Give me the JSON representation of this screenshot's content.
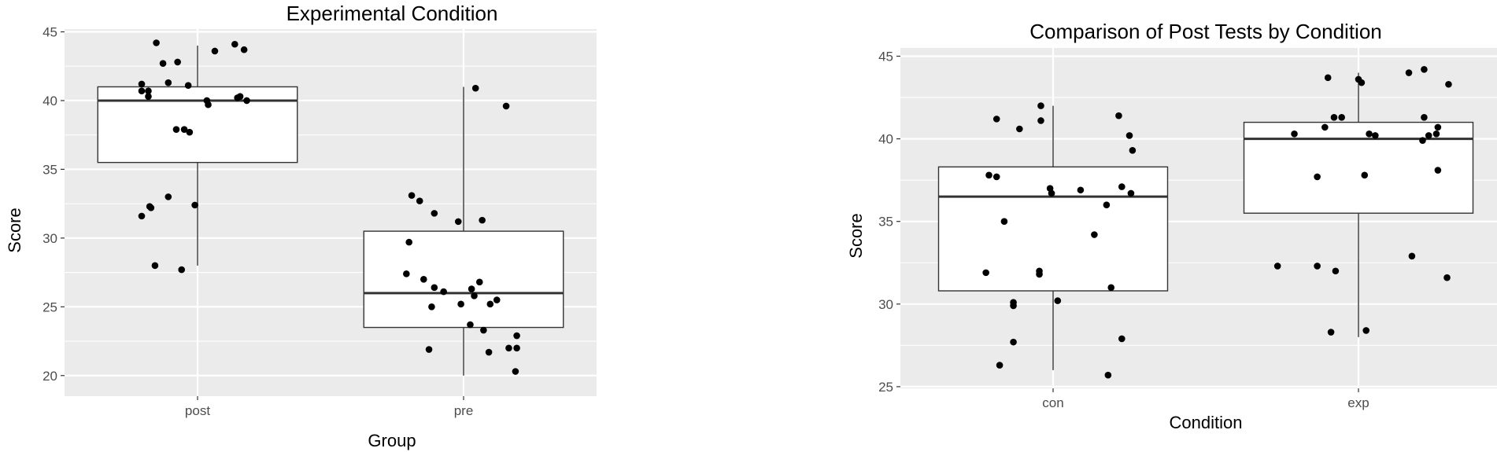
{
  "chart_data": [
    {
      "type": "box",
      "title": "Experimental Condition",
      "xlabel": "Group",
      "ylabel": "Score",
      "categories": [
        "post",
        "pre"
      ],
      "ylim": [
        18.5,
        45.2
      ],
      "yticks": [
        20,
        25,
        30,
        35,
        40,
        45
      ],
      "grid": true,
      "boxes": [
        {
          "category": "post",
          "q1": 35.5,
          "median": 40.0,
          "q3": 41.0,
          "whisker_low": 28.0,
          "whisker_high": 44.0
        },
        {
          "category": "pre",
          "q1": 23.5,
          "median": 26.0,
          "q3": 30.5,
          "whisker_low": 20.0,
          "whisker_high": 41.0
        }
      ],
      "points": [
        {
          "group": "post",
          "offset": -0.42,
          "value": 41.2
        },
        {
          "group": "post",
          "offset": -0.42,
          "value": 40.7
        },
        {
          "group": "post",
          "offset": -0.37,
          "value": 40.7
        },
        {
          "group": "post",
          "offset": -0.37,
          "value": 40.3
        },
        {
          "group": "post",
          "offset": -0.36,
          "value": 32.3
        },
        {
          "group": "post",
          "offset": -0.35,
          "value": 32.2
        },
        {
          "group": "post",
          "offset": -0.42,
          "value": 31.6
        },
        {
          "group": "post",
          "offset": -0.31,
          "value": 44.2
        },
        {
          "group": "post",
          "offset": -0.32,
          "value": 28.0
        },
        {
          "group": "post",
          "offset": -0.26,
          "value": 42.7
        },
        {
          "group": "post",
          "offset": -0.22,
          "value": 41.3
        },
        {
          "group": "post",
          "offset": -0.22,
          "value": 33.0
        },
        {
          "group": "post",
          "offset": -0.15,
          "value": 42.8
        },
        {
          "group": "post",
          "offset": -0.16,
          "value": 37.9
        },
        {
          "group": "post",
          "offset": -0.1,
          "value": 37.9
        },
        {
          "group": "post",
          "offset": -0.07,
          "value": 41.1
        },
        {
          "group": "post",
          "offset": -0.06,
          "value": 37.7
        },
        {
          "group": "post",
          "offset": -0.12,
          "value": 27.7
        },
        {
          "group": "post",
          "offset": -0.02,
          "value": 32.4
        },
        {
          "group": "post",
          "offset": 0.07,
          "value": 40.0
        },
        {
          "group": "post",
          "offset": 0.08,
          "value": 39.7
        },
        {
          "group": "post",
          "offset": 0.13,
          "value": 43.6
        },
        {
          "group": "post",
          "offset": 0.28,
          "value": 44.1
        },
        {
          "group": "post",
          "offset": 0.3,
          "value": 40.2
        },
        {
          "group": "post",
          "offset": 0.32,
          "value": 40.3
        },
        {
          "group": "post",
          "offset": 0.35,
          "value": 43.7
        },
        {
          "group": "post",
          "offset": 0.37,
          "value": 40.0
        },
        {
          "group": "pre",
          "offset": -0.43,
          "value": 27.4
        },
        {
          "group": "pre",
          "offset": -0.41,
          "value": 29.7
        },
        {
          "group": "pre",
          "offset": -0.39,
          "value": 33.1
        },
        {
          "group": "pre",
          "offset": -0.33,
          "value": 32.7
        },
        {
          "group": "pre",
          "offset": -0.3,
          "value": 27.0
        },
        {
          "group": "pre",
          "offset": -0.26,
          "value": 21.9
        },
        {
          "group": "pre",
          "offset": -0.24,
          "value": 25.0
        },
        {
          "group": "pre",
          "offset": -0.22,
          "value": 31.8
        },
        {
          "group": "pre",
          "offset": -0.22,
          "value": 26.4
        },
        {
          "group": "pre",
          "offset": -0.15,
          "value": 26.1
        },
        {
          "group": "pre",
          "offset": -0.04,
          "value": 31.2
        },
        {
          "group": "pre",
          "offset": -0.02,
          "value": 25.2
        },
        {
          "group": "pre",
          "offset": 0.09,
          "value": 40.9
        },
        {
          "group": "pre",
          "offset": 0.06,
          "value": 26.3
        },
        {
          "group": "pre",
          "offset": 0.08,
          "value": 25.8
        },
        {
          "group": "pre",
          "offset": 0.12,
          "value": 26.8
        },
        {
          "group": "pre",
          "offset": 0.05,
          "value": 23.7
        },
        {
          "group": "pre",
          "offset": 0.14,
          "value": 31.3
        },
        {
          "group": "pre",
          "offset": 0.15,
          "value": 23.3
        },
        {
          "group": "pre",
          "offset": 0.19,
          "value": 21.7
        },
        {
          "group": "pre",
          "offset": 0.2,
          "value": 25.2
        },
        {
          "group": "pre",
          "offset": 0.25,
          "value": 25.5
        },
        {
          "group": "pre",
          "offset": 0.32,
          "value": 39.6
        },
        {
          "group": "pre",
          "offset": 0.34,
          "value": 22.0
        },
        {
          "group": "pre",
          "offset": 0.4,
          "value": 22.9
        },
        {
          "group": "pre",
          "offset": 0.4,
          "value": 22.0
        },
        {
          "group": "pre",
          "offset": 0.39,
          "value": 20.3
        }
      ]
    },
    {
      "type": "box",
      "title": "Comparison of Post Tests by Condition",
      "xlabel": "Condition",
      "ylabel": "Score",
      "categories": [
        "con",
        "exp"
      ],
      "ylim": [
        24.9,
        45.5
      ],
      "yticks": [
        25,
        30,
        35,
        40,
        45
      ],
      "grid": true,
      "boxes": [
        {
          "category": "con",
          "q1": 30.8,
          "median": 36.5,
          "q3": 38.3,
          "whisker_low": 26.0,
          "whisker_high": 42.0
        },
        {
          "category": "exp",
          "q1": 35.5,
          "median": 40.0,
          "q3": 41.0,
          "whisker_low": 28.0,
          "whisker_high": 44.0
        }
      ],
      "points": [
        {
          "group": "con",
          "offset": -0.44,
          "value": 31.9
        },
        {
          "group": "con",
          "offset": -0.42,
          "value": 37.8
        },
        {
          "group": "con",
          "offset": -0.37,
          "value": 41.2
        },
        {
          "group": "con",
          "offset": -0.37,
          "value": 37.7
        },
        {
          "group": "con",
          "offset": -0.32,
          "value": 35.0
        },
        {
          "group": "con",
          "offset": -0.35,
          "value": 26.3
        },
        {
          "group": "con",
          "offset": -0.26,
          "value": 30.1
        },
        {
          "group": "con",
          "offset": -0.26,
          "value": 29.9
        },
        {
          "group": "con",
          "offset": -0.26,
          "value": 27.7
        },
        {
          "group": "con",
          "offset": -0.22,
          "value": 40.6
        },
        {
          "group": "con",
          "offset": -0.08,
          "value": 42.0
        },
        {
          "group": "con",
          "offset": -0.08,
          "value": 41.1
        },
        {
          "group": "con",
          "offset": -0.09,
          "value": 32.0
        },
        {
          "group": "con",
          "offset": -0.09,
          "value": 31.8
        },
        {
          "group": "con",
          "offset": -0.02,
          "value": 37.0
        },
        {
          "group": "con",
          "offset": -0.01,
          "value": 36.7
        },
        {
          "group": "con",
          "offset": 0.03,
          "value": 30.2
        },
        {
          "group": "con",
          "offset": 0.18,
          "value": 36.9
        },
        {
          "group": "con",
          "offset": 0.27,
          "value": 34.2
        },
        {
          "group": "con",
          "offset": 0.35,
          "value": 36.0
        },
        {
          "group": "con",
          "offset": 0.36,
          "value": 25.7
        },
        {
          "group": "con",
          "offset": 0.38,
          "value": 31.0
        },
        {
          "group": "con",
          "offset": 0.43,
          "value": 41.4
        },
        {
          "group": "con",
          "offset": 0.45,
          "value": 27.9
        },
        {
          "group": "con",
          "offset": 0.45,
          "value": 37.1
        },
        {
          "group": "con",
          "offset": 0.5,
          "value": 40.2
        },
        {
          "group": "con",
          "offset": 0.51,
          "value": 36.7
        },
        {
          "group": "con",
          "offset": 0.52,
          "value": 39.3
        },
        {
          "group": "exp",
          "offset": -0.53,
          "value": 32.3
        },
        {
          "group": "exp",
          "offset": -0.42,
          "value": 40.3
        },
        {
          "group": "exp",
          "offset": -0.27,
          "value": 37.7
        },
        {
          "group": "exp",
          "offset": -0.27,
          "value": 32.3
        },
        {
          "group": "exp",
          "offset": -0.22,
          "value": 40.7
        },
        {
          "group": "exp",
          "offset": -0.2,
          "value": 43.7
        },
        {
          "group": "exp",
          "offset": -0.18,
          "value": 28.3
        },
        {
          "group": "exp",
          "offset": -0.16,
          "value": 41.3
        },
        {
          "group": "exp",
          "offset": -0.15,
          "value": 32.0
        },
        {
          "group": "exp",
          "offset": -0.11,
          "value": 41.3
        },
        {
          "group": "exp",
          "offset": 0.0,
          "value": 43.6
        },
        {
          "group": "exp",
          "offset": 0.02,
          "value": 43.4
        },
        {
          "group": "exp",
          "offset": 0.04,
          "value": 37.8
        },
        {
          "group": "exp",
          "offset": 0.05,
          "value": 28.4
        },
        {
          "group": "exp",
          "offset": 0.07,
          "value": 40.3
        },
        {
          "group": "exp",
          "offset": 0.11,
          "value": 40.2
        },
        {
          "group": "exp",
          "offset": 0.33,
          "value": 44.0
        },
        {
          "group": "exp",
          "offset": 0.35,
          "value": 32.9
        },
        {
          "group": "exp",
          "offset": 0.43,
          "value": 41.3
        },
        {
          "group": "exp",
          "offset": 0.43,
          "value": 44.2
        },
        {
          "group": "exp",
          "offset": 0.42,
          "value": 39.9
        },
        {
          "group": "exp",
          "offset": 0.46,
          "value": 40.2
        },
        {
          "group": "exp",
          "offset": 0.51,
          "value": 40.3
        },
        {
          "group": "exp",
          "offset": 0.52,
          "value": 40.7
        },
        {
          "group": "exp",
          "offset": 0.52,
          "value": 38.1
        },
        {
          "group": "exp",
          "offset": 0.59,
          "value": 43.3
        },
        {
          "group": "exp",
          "offset": 0.58,
          "value": 31.6
        }
      ]
    }
  ]
}
